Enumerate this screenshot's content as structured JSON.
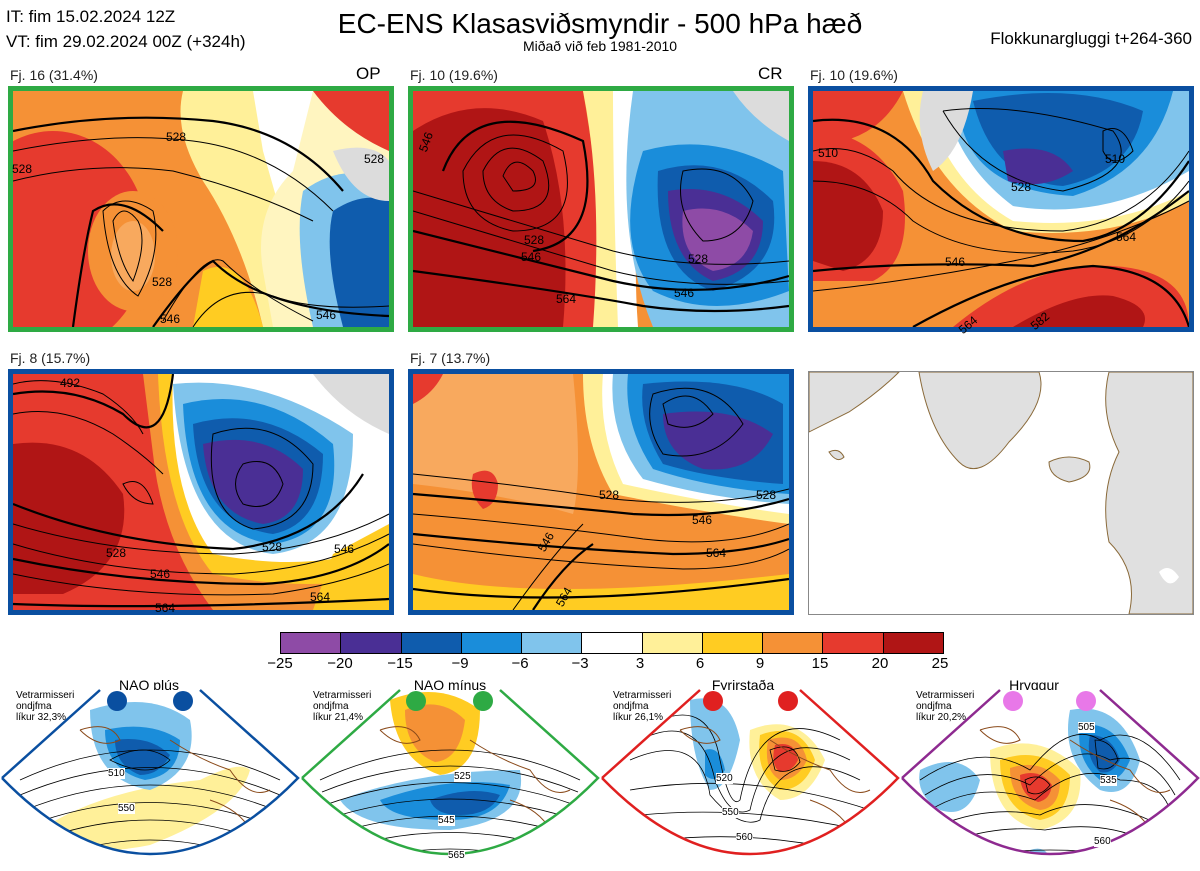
{
  "header": {
    "it_line": "IT: fim 15.02.2024 12Z",
    "vt_line": "VT: fim 29.02.2024 00Z  (+324h)",
    "title": "EC-ENS Klasasviðsmyndir - 500 hPa hæð",
    "subtitle": "Miðað við feb 1981-2010",
    "window": "Flokkunargluggi t+264-360"
  },
  "panels": [
    {
      "label": "Fj. 16 (31.4%)",
      "tag": "OP",
      "border": "#2eaa44",
      "contours": [
        "528",
        "528",
        "528",
        "546",
        "546",
        "528"
      ]
    },
    {
      "label": "Fj. 10 (19.6%)",
      "tag": "CR",
      "border": "#2eaa44",
      "contours": [
        "546",
        "528",
        "546",
        "528",
        "546",
        "564"
      ]
    },
    {
      "label": "Fj. 10 (19.6%)",
      "tag": "",
      "border": "#0a4fa0",
      "contours": [
        "510",
        "528",
        "546",
        "564",
        "564",
        "510",
        "582"
      ]
    },
    {
      "label": "Fj. 8 (15.7%)",
      "tag": "",
      "border": "#0a4fa0",
      "contours": [
        "492",
        "528",
        "546",
        "564",
        "528",
        "546",
        "564"
      ]
    },
    {
      "label": "Fj. 7 (13.7%)",
      "tag": "",
      "border": "#0a4fa0",
      "contours": [
        "528",
        "546",
        "564",
        "528",
        "546",
        "564"
      ]
    }
  ],
  "colorbar": {
    "ticks": [
      "−25",
      "−20",
      "−15",
      "−9",
      "−6",
      "−3",
      "3",
      "6",
      "9",
      "15",
      "20",
      "25"
    ],
    "colors": [
      "#8e4ba6",
      "#4a2f95",
      "#0f5cad",
      "#1a8dda",
      "#80c4ec",
      "#ffffff",
      "#fff099",
      "#ffcc22",
      "#f59136",
      "#e63a2e",
      "#b01515"
    ]
  },
  "regimes": [
    {
      "name": "NAO plús",
      "line1": "Vetrarmisseri",
      "line2": "ondjfma",
      "line3": "líkur 32,3%",
      "color": "#0a4fa0",
      "dot": "#0a4fa0",
      "contours": [
        "510",
        "550"
      ]
    },
    {
      "name": "NAO mínus",
      "line1": "Vetrarmisseri",
      "line2": "ondjfma",
      "line3": "líkur 21,4%",
      "color": "#2eaa44",
      "dot": "#2eaa44",
      "contours": [
        "525",
        "545",
        "565"
      ]
    },
    {
      "name": "Fyrirstaða",
      "line1": "Vetrarmisseri",
      "line2": "ondjfma",
      "line3": "líkur 26,1%",
      "color": "#e02020",
      "dot": "#e02020",
      "contours": [
        "520",
        "550",
        "560"
      ]
    },
    {
      "name": "Hryggur",
      "line1": "Vetrarmisseri",
      "line2": "ondjfma",
      "line3": "líkur 20,2%",
      "color": "#8e2a90",
      "dot": "#e878e8",
      "contours": [
        "505",
        "535",
        "560"
      ]
    }
  ]
}
